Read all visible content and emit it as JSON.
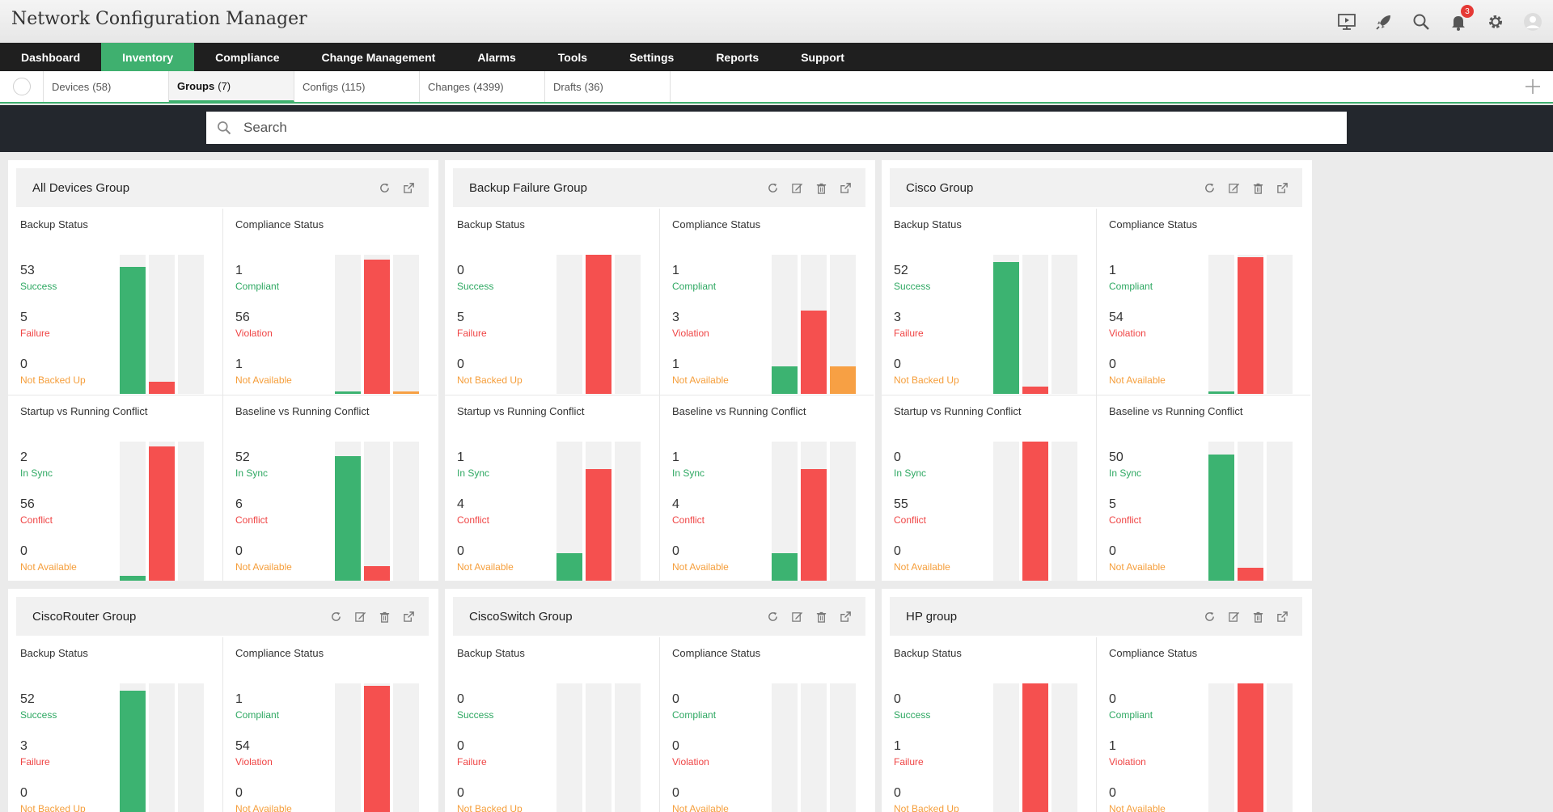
{
  "app": {
    "title": "Network Configuration Manager",
    "notifications": "3"
  },
  "nav": [
    "Dashboard",
    "Inventory",
    "Compliance",
    "Change Management",
    "Alarms",
    "Tools",
    "Settings",
    "Reports",
    "Support"
  ],
  "nav_active": 1,
  "subtabs": [
    {
      "label": "Devices",
      "count": "(58)"
    },
    {
      "label": "Groups",
      "count": "(7)"
    },
    {
      "label": "Configs",
      "count": "(115)"
    },
    {
      "label": "Changes",
      "count": "(4399)"
    },
    {
      "label": "Drafts",
      "count": "(36)"
    }
  ],
  "subtab_active": 1,
  "search": {
    "placeholder": "Search"
  },
  "colors": {
    "success": "#3cb371",
    "failure": "#f5504f",
    "warning": "#f7a044",
    "accent": "#3fb06f"
  },
  "groups": [
    {
      "name": "All Devices Group",
      "actions": [
        "refresh-icon",
        "open-external-icon"
      ],
      "panels": [
        {
          "title": "Backup Status",
          "metrics": [
            {
              "value": "53",
              "label": "Success",
              "color": "g"
            },
            {
              "value": "5",
              "label": "Failure",
              "color": "r"
            },
            {
              "value": "0",
              "label": "Not Backed Up",
              "color": "o"
            }
          ]
        },
        {
          "title": "Compliance Status",
          "metrics": [
            {
              "value": "1",
              "label": "Compliant",
              "color": "g"
            },
            {
              "value": "56",
              "label": "Violation",
              "color": "r"
            },
            {
              "value": "1",
              "label": "Not Available",
              "color": "o"
            }
          ]
        },
        {
          "title": "Startup vs Running Conflict",
          "metrics": [
            {
              "value": "2",
              "label": "In Sync",
              "color": "g"
            },
            {
              "value": "56",
              "label": "Conflict",
              "color": "r"
            },
            {
              "value": "0",
              "label": "Not Available",
              "color": "o"
            }
          ]
        },
        {
          "title": "Baseline vs Running Conflict",
          "metrics": [
            {
              "value": "52",
              "label": "In Sync",
              "color": "g"
            },
            {
              "value": "6",
              "label": "Conflict",
              "color": "r"
            },
            {
              "value": "0",
              "label": "Not Available",
              "color": "o"
            }
          ]
        }
      ]
    },
    {
      "name": "Backup Failure Group",
      "actions": [
        "refresh-icon",
        "edit-icon",
        "delete-icon",
        "open-external-icon"
      ],
      "panels": [
        {
          "title": "Backup Status",
          "metrics": [
            {
              "value": "0",
              "label": "Success",
              "color": "g"
            },
            {
              "value": "5",
              "label": "Failure",
              "color": "r"
            },
            {
              "value": "0",
              "label": "Not Backed Up",
              "color": "o"
            }
          ]
        },
        {
          "title": "Compliance Status",
          "metrics": [
            {
              "value": "1",
              "label": "Compliant",
              "color": "g"
            },
            {
              "value": "3",
              "label": "Violation",
              "color": "r"
            },
            {
              "value": "1",
              "label": "Not Available",
              "color": "o"
            }
          ]
        },
        {
          "title": "Startup vs Running Conflict",
          "metrics": [
            {
              "value": "1",
              "label": "In Sync",
              "color": "g"
            },
            {
              "value": "4",
              "label": "Conflict",
              "color": "r"
            },
            {
              "value": "0",
              "label": "Not Available",
              "color": "o"
            }
          ]
        },
        {
          "title": "Baseline vs Running Conflict",
          "metrics": [
            {
              "value": "1",
              "label": "In Sync",
              "color": "g"
            },
            {
              "value": "4",
              "label": "Conflict",
              "color": "r"
            },
            {
              "value": "0",
              "label": "Not Available",
              "color": "o"
            }
          ]
        }
      ]
    },
    {
      "name": "Cisco Group",
      "actions": [
        "refresh-icon",
        "edit-icon",
        "delete-icon",
        "open-external-icon"
      ],
      "panels": [
        {
          "title": "Backup Status",
          "metrics": [
            {
              "value": "52",
              "label": "Success",
              "color": "g"
            },
            {
              "value": "3",
              "label": "Failure",
              "color": "r"
            },
            {
              "value": "0",
              "label": "Not Backed Up",
              "color": "o"
            }
          ]
        },
        {
          "title": "Compliance Status",
          "metrics": [
            {
              "value": "1",
              "label": "Compliant",
              "color": "g"
            },
            {
              "value": "54",
              "label": "Violation",
              "color": "r"
            },
            {
              "value": "0",
              "label": "Not Available",
              "color": "o"
            }
          ]
        },
        {
          "title": "Startup vs Running Conflict",
          "metrics": [
            {
              "value": "0",
              "label": "In Sync",
              "color": "g"
            },
            {
              "value": "55",
              "label": "Conflict",
              "color": "r"
            },
            {
              "value": "0",
              "label": "Not Available",
              "color": "o"
            }
          ]
        },
        {
          "title": "Baseline vs Running Conflict",
          "metrics": [
            {
              "value": "50",
              "label": "In Sync",
              "color": "g"
            },
            {
              "value": "5",
              "label": "Conflict",
              "color": "r"
            },
            {
              "value": "0",
              "label": "Not Available",
              "color": "o"
            }
          ]
        }
      ]
    },
    {
      "name": "CiscoRouter Group",
      "actions": [
        "refresh-icon",
        "edit-icon",
        "delete-icon",
        "open-external-icon"
      ],
      "panels": [
        {
          "title": "Backup Status",
          "metrics": [
            {
              "value": "52",
              "label": "Success",
              "color": "g"
            },
            {
              "value": "3",
              "label": "Failure",
              "color": "r"
            },
            {
              "value": "0",
              "label": "Not Backed Up",
              "color": "o"
            }
          ]
        },
        {
          "title": "Compliance Status",
          "metrics": [
            {
              "value": "1",
              "label": "Compliant",
              "color": "g"
            },
            {
              "value": "54",
              "label": "Violation",
              "color": "r"
            },
            {
              "value": "0",
              "label": "Not Available",
              "color": "o"
            }
          ]
        }
      ]
    },
    {
      "name": "CiscoSwitch Group",
      "actions": [
        "refresh-icon",
        "edit-icon",
        "delete-icon",
        "open-external-icon"
      ],
      "panels": [
        {
          "title": "Backup Status",
          "metrics": [
            {
              "value": "0",
              "label": "Success",
              "color": "g"
            },
            {
              "value": "0",
              "label": "Failure",
              "color": "r"
            },
            {
              "value": "0",
              "label": "Not Backed Up",
              "color": "o"
            }
          ]
        },
        {
          "title": "Compliance Status",
          "metrics": [
            {
              "value": "0",
              "label": "Compliant",
              "color": "g"
            },
            {
              "value": "0",
              "label": "Violation",
              "color": "r"
            },
            {
              "value": "0",
              "label": "Not Available",
              "color": "o"
            }
          ]
        }
      ]
    },
    {
      "name": "HP group",
      "actions": [
        "refresh-icon",
        "edit-icon",
        "delete-icon",
        "open-external-icon"
      ],
      "panels": [
        {
          "title": "Backup Status",
          "metrics": [
            {
              "value": "0",
              "label": "Success",
              "color": "g"
            },
            {
              "value": "1",
              "label": "Failure",
              "color": "r"
            },
            {
              "value": "0",
              "label": "Not Backed Up",
              "color": "o"
            }
          ]
        },
        {
          "title": "Compliance Status",
          "metrics": [
            {
              "value": "0",
              "label": "Compliant",
              "color": "g"
            },
            {
              "value": "1",
              "label": "Violation",
              "color": "r"
            },
            {
              "value": "0",
              "label": "Not Available",
              "color": "o"
            }
          ]
        }
      ]
    }
  ]
}
